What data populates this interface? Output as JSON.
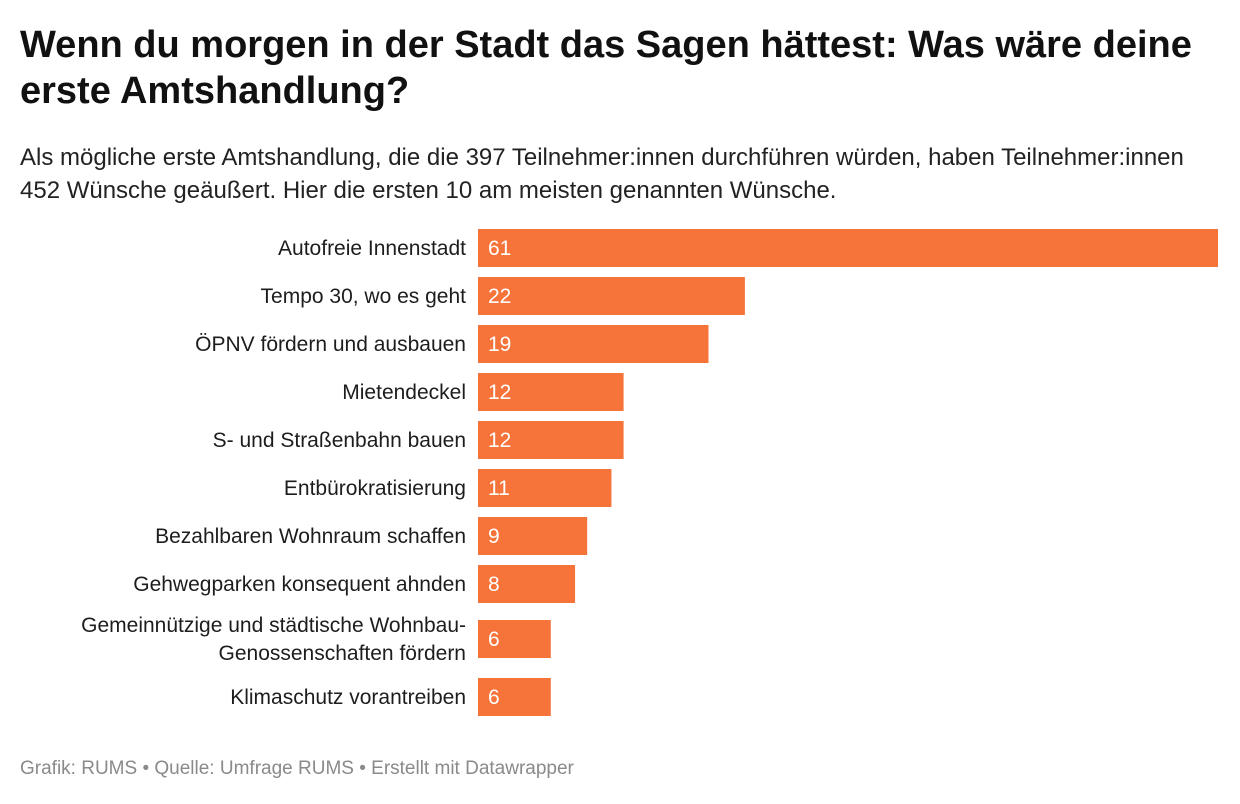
{
  "header": {
    "title": "Wenn du morgen in der Stadt das Sagen hättest: Was wäre deine erste Amtshandlung?",
    "subtitle": "Als mögliche erste Amtshandlung, die die 397 Teilnehmer:innen durchführen würden, haben Teilnehmer:innen 452 Wünsche geäußert. Hier die ersten 10 am meisten genannten Wünsche."
  },
  "chart_data": {
    "type": "bar",
    "orientation": "horizontal",
    "title": "Wenn du morgen in der Stadt das Sagen hättest: Was wäre deine erste Amtshandlung?",
    "categories": [
      [
        "Autofreie Innenstadt"
      ],
      [
        "Tempo 30, wo es geht"
      ],
      [
        "ÖPNV fördern und ausbauen"
      ],
      [
        "Mietendeckel"
      ],
      [
        "S- und Straßenbahn bauen"
      ],
      [
        "Entbürokratisierung"
      ],
      [
        "Bezahlbaren Wohnraum schaffen"
      ],
      [
        "Gehwegparken konsequent ahnden"
      ],
      [
        "Gemeinnützige und städtische Wohnbau-",
        "Genossenschaften fördern"
      ],
      [
        "Klimaschutz vorantreiben"
      ]
    ],
    "values": [
      61,
      22,
      19,
      12,
      12,
      11,
      9,
      8,
      6,
      6
    ],
    "xlim": [
      0,
      61
    ],
    "bar_color": "#f6733a",
    "label_color": "#ffffff",
    "grid": false
  },
  "footer": {
    "credit": "Grafik: RUMS • Quelle: Umfrage RUMS • Erstellt mit Datawrapper"
  }
}
